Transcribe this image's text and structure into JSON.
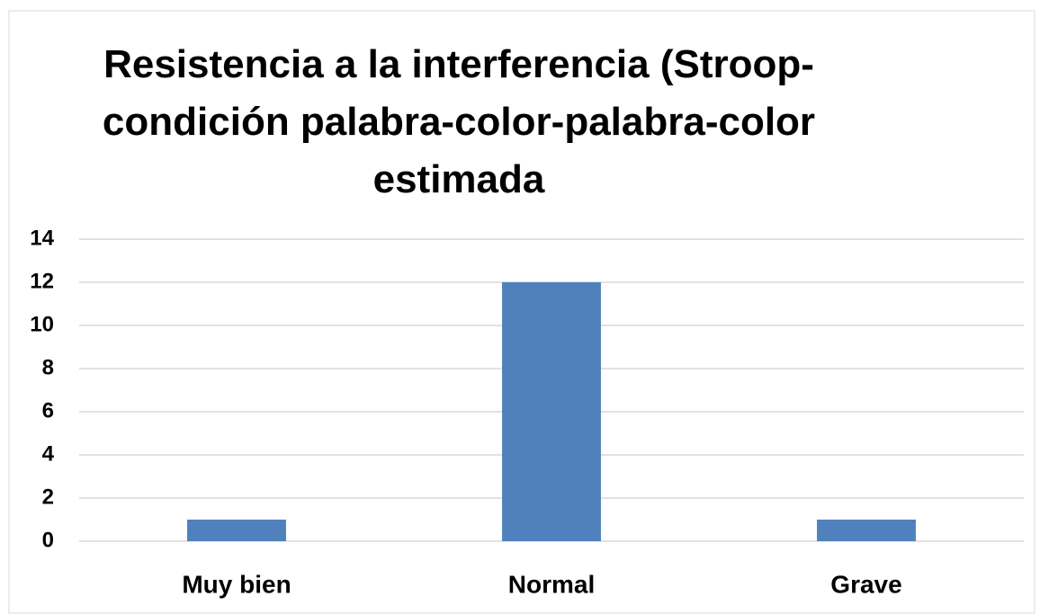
{
  "chart_data": {
    "type": "bar",
    "title": "Resistencia a la interferencia (Stroop-condición palabra-color-palabra-color estimada",
    "categories": [
      "Muy bien",
      "Normal",
      "Grave"
    ],
    "values": [
      1,
      12,
      1
    ],
    "color": "#4f81bd",
    "ylim": [
      0,
      14
    ],
    "yticks": [
      0,
      2,
      4,
      6,
      8,
      10,
      12,
      14
    ],
    "grid": true
  }
}
